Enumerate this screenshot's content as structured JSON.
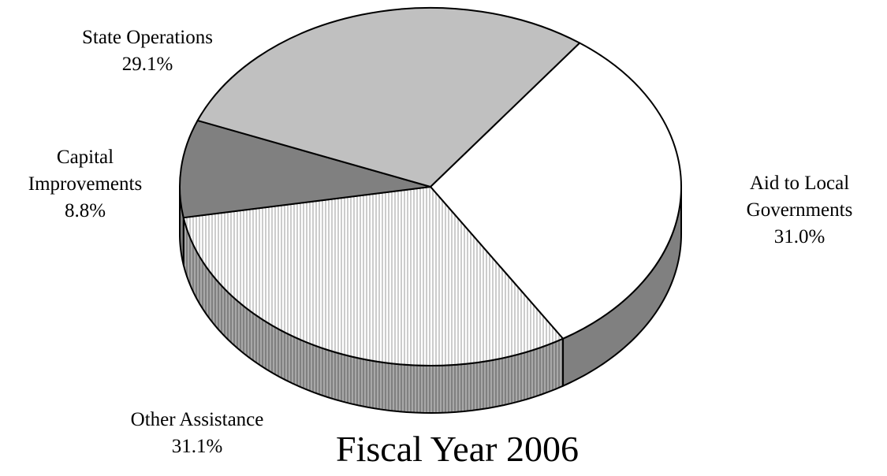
{
  "chart_data": {
    "type": "pie",
    "title": "Fiscal Year 2006",
    "slices": [
      {
        "key": "aid",
        "name": "Aid to Local Governments",
        "name_lines": [
          "Aid to Local",
          "Governments"
        ],
        "value": 31.0,
        "label": "31.0%",
        "color": "#ffffff",
        "pattern": "none"
      },
      {
        "key": "other",
        "name": "Other Assistance",
        "name_lines": [
          "Other Assistance"
        ],
        "value": 31.1,
        "label": "31.1%",
        "color": "#eeeeee",
        "pattern": "vertical-lines"
      },
      {
        "key": "capital",
        "name": "Capital Improvements",
        "name_lines": [
          "Capital",
          "Improvements"
        ],
        "value": 8.8,
        "label": "8.8%",
        "color": "#808080",
        "pattern": "none"
      },
      {
        "key": "state",
        "name": "State Operations",
        "name_lines": [
          "State Operations"
        ],
        "value": 29.1,
        "label": "29.1%",
        "color": "#c0c0c0",
        "pattern": "none"
      }
    ],
    "side_colors": {
      "aid": "#808080",
      "other": "#999999"
    },
    "legend": "none",
    "style": "3d"
  }
}
